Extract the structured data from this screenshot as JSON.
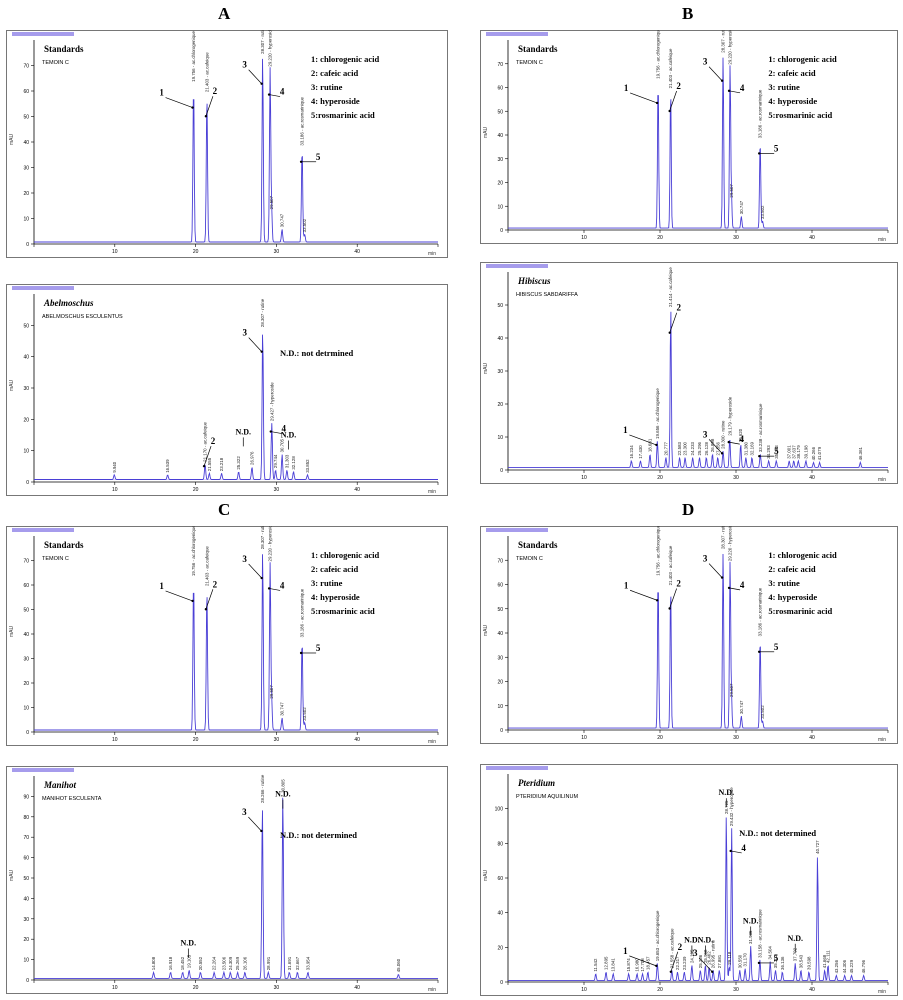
{
  "figure": {
    "section_labels": [
      "A",
      "B",
      "C",
      "D"
    ],
    "standards_legend": [
      "1: chlorogenic acid",
      "2: cafeic acid",
      "3: rutine",
      "4: hyperoside",
      "5:rosmarinic acid"
    ],
    "nd_note": "N.D.: not detrmined",
    "nd_note_2": "N.D.: not determined"
  },
  "chart_data": [
    {
      "id": "A-standards",
      "type": "line",
      "title": "Standards",
      "subtitle": "TEMOIN C",
      "ylabel": "mAU",
      "xlabel": "min",
      "xlim": [
        0,
        50
      ],
      "ylim": [
        0,
        80
      ],
      "y_ticks": [
        0,
        10,
        20,
        30,
        40,
        50,
        60,
        70
      ],
      "x_ticks": [
        0,
        10,
        20,
        30,
        40,
        50
      ],
      "peaks": [
        {
          "rt": 19.75,
          "h": 62,
          "label": "19.756 - ac.chlorogenique"
        },
        {
          "rt": 21.4,
          "h": 58,
          "label": "21.403 - ac.cafeique"
        },
        {
          "rt": 28.3,
          "h": 73,
          "label": "28.307 - rutine"
        },
        {
          "rt": 29.22,
          "h": 68,
          "label": "29.220 - hyperoside"
        },
        {
          "rt": 29.4,
          "h": 12,
          "label": "29.507"
        },
        {
          "rt": 30.7,
          "h": 5,
          "label": "30.747"
        },
        {
          "rt": 33.18,
          "h": 37,
          "label": "33.186 - ac.rosmarinique"
        },
        {
          "rt": 33.5,
          "h": 3,
          "label": "33.502"
        }
      ],
      "callouts": [
        {
          "n": "1",
          "rt": 19.75
        },
        {
          "n": "2",
          "rt": 21.4
        },
        {
          "n": "3",
          "rt": 28.3
        },
        {
          "n": "4",
          "rt": 29.22
        },
        {
          "n": "5",
          "rt": 33.18
        }
      ]
    },
    {
      "id": "A-abelmoschus",
      "type": "line",
      "title": "Abelmoschus",
      "subtitle": "ABELMOSCHUS ESCULENTUS",
      "ylabel": "mAU",
      "xlabel": "min",
      "xlim": [
        0,
        50
      ],
      "ylim": [
        0,
        60
      ],
      "y_ticks": [
        0,
        10,
        20,
        30,
        40,
        50
      ],
      "x_ticks": [
        0,
        10,
        20,
        30,
        40,
        50
      ],
      "peaks": [
        {
          "rt": 9.94,
          "h": 1.5,
          "label": "9.940"
        },
        {
          "rt": 16.539,
          "h": 1.5,
          "label": "16.539"
        },
        {
          "rt": 21.17,
          "h": 5,
          "label": "21.170 - ac.cafeique"
        },
        {
          "rt": 21.7,
          "h": 2,
          "label": "21.555"
        },
        {
          "rt": 23.218,
          "h": 2,
          "label": "23.218"
        },
        {
          "rt": 25.322,
          "h": 2.5,
          "label": "25.322"
        },
        {
          "rt": 26.976,
          "h": 4,
          "label": "26.976"
        },
        {
          "rt": 28.307,
          "h": 48,
          "label": "28.307 - rutine"
        },
        {
          "rt": 29.427,
          "h": 18,
          "label": "29.427 - hyperoside"
        },
        {
          "rt": 29.9,
          "h": 3,
          "label": "29.744"
        },
        {
          "rt": 30.705,
          "h": 8,
          "label": "30.705"
        },
        {
          "rt": 31.3,
          "h": 3,
          "label": "31.303"
        },
        {
          "rt": 32.12,
          "h": 2.5,
          "label": "32.128"
        },
        {
          "rt": 33.852,
          "h": 1.5,
          "label": "33.852"
        }
      ],
      "callouts": [
        {
          "n": "2",
          "rt": 21.17
        },
        {
          "n": "3",
          "rt": 28.307
        },
        {
          "n": "4",
          "rt": 29.427
        }
      ],
      "nd_marks": [
        25.9,
        31.5
      ]
    },
    {
      "id": "B-standards",
      "type": "line",
      "title": "Standards",
      "subtitle": "TEMOIN C",
      "ylabel": "mAU",
      "xlabel": "min",
      "xlim": [
        0,
        50
      ],
      "ylim": [
        0,
        80
      ],
      "y_ticks": [
        0,
        10,
        20,
        30,
        40,
        50,
        60,
        70
      ],
      "x_ticks": [
        0,
        10,
        20,
        30,
        40,
        50
      ],
      "peaks": [
        {
          "rt": 19.75,
          "h": 62,
          "label": "19.756 - ac.chlorogenique"
        },
        {
          "rt": 21.4,
          "h": 58,
          "label": "21.403 - ac.cafeique"
        },
        {
          "rt": 28.3,
          "h": 73,
          "label": "28.307 - rutine"
        },
        {
          "rt": 29.22,
          "h": 68,
          "label": "29.220 - hyperoside"
        },
        {
          "rt": 29.4,
          "h": 12,
          "label": "29.507"
        },
        {
          "rt": 30.7,
          "h": 5,
          "label": "30.747"
        },
        {
          "rt": 33.18,
          "h": 37,
          "label": "33.186 - ac.rosmarinique"
        },
        {
          "rt": 33.5,
          "h": 3,
          "label": "33.502"
        }
      ],
      "callouts": [
        {
          "n": "1",
          "rt": 19.75
        },
        {
          "n": "2",
          "rt": 21.4
        },
        {
          "n": "3",
          "rt": 28.3
        },
        {
          "n": "4",
          "rt": 29.22
        },
        {
          "n": "5",
          "rt": 33.18
        }
      ]
    },
    {
      "id": "B-hibiscus",
      "type": "line",
      "title": "Hibiscus",
      "subtitle": "HIBISCUS SABDARIFFA",
      "ylabel": "mAU",
      "xlabel": "min",
      "xlim": [
        0,
        50
      ],
      "ylim": [
        0,
        60
      ],
      "y_ticks": [
        0,
        10,
        20,
        30,
        40,
        50
      ],
      "x_ticks": [
        0,
        10,
        20,
        30,
        40,
        50
      ],
      "peaks": [
        {
          "rt": 16.234,
          "h": 2,
          "label": "16.234"
        },
        {
          "rt": 17.43,
          "h": 2,
          "label": "17.430"
        },
        {
          "rt": 18.681,
          "h": 4,
          "label": "18.681"
        },
        {
          "rt": 19.656,
          "h": 8,
          "label": "19.656 - ac.chlorogenique"
        },
        {
          "rt": 20.777,
          "h": 3,
          "label": "20.777"
        },
        {
          "rt": 21.414,
          "h": 48,
          "label": "21.414 - ac.cafeique"
        },
        {
          "rt": 22.58,
          "h": 3,
          "label": "22.583"
        },
        {
          "rt": 23.3,
          "h": 3,
          "label": "23.300"
        },
        {
          "rt": 24.3,
          "h": 3,
          "label": "24.233"
        },
        {
          "rt": 25.2,
          "h": 3,
          "label": "25.296"
        },
        {
          "rt": 26.1,
          "h": 3,
          "label": "26.128"
        },
        {
          "rt": 26.9,
          "h": 4,
          "label": "26.898"
        },
        {
          "rt": 27.6,
          "h": 3,
          "label": "27.556"
        },
        {
          "rt": 28.3,
          "h": 5,
          "label": "28.300 - rutine"
        },
        {
          "rt": 29.179,
          "h": 9,
          "label": "29.179 - hyperoside"
        },
        {
          "rt": 30.62,
          "h": 7,
          "label": "30.620"
        },
        {
          "rt": 31.3,
          "h": 3,
          "label": "31.380"
        },
        {
          "rt": 32.1,
          "h": 3,
          "label": "32.169"
        },
        {
          "rt": 33.2,
          "h": 4,
          "label": "33.238 - ac.rosmarinique"
        },
        {
          "rt": 34.3,
          "h": 2,
          "label": "34.293"
        },
        {
          "rt": 35.3,
          "h": 2,
          "label": "35.263"
        },
        {
          "rt": 37.0,
          "h": 2,
          "label": "37.001"
        },
        {
          "rt": 37.6,
          "h": 2,
          "label": "37.637"
        },
        {
          "rt": 38.2,
          "h": 2,
          "label": "38.179"
        },
        {
          "rt": 39.2,
          "h": 2,
          "label": "39.198"
        },
        {
          "rt": 40.2,
          "h": 1.5,
          "label": "40.266"
        },
        {
          "rt": 41.0,
          "h": 1.5,
          "label": "41.079"
        },
        {
          "rt": 46.361,
          "h": 1.5,
          "label": "46.361"
        }
      ],
      "callouts": [
        {
          "n": "1",
          "rt": 19.656
        },
        {
          "n": "2",
          "rt": 21.414
        },
        {
          "n": "3",
          "rt": 28.3
        },
        {
          "n": "4",
          "rt": 29.179
        },
        {
          "n": "5",
          "rt": 33.2
        }
      ]
    },
    {
      "id": "C-standards",
      "type": "line",
      "title": "Standards",
      "subtitle": "TEMOIN C",
      "ylabel": "mAU",
      "xlabel": "min",
      "xlim": [
        0,
        50
      ],
      "ylim": [
        0,
        80
      ],
      "y_ticks": [
        0,
        10,
        20,
        30,
        40,
        50,
        60,
        70
      ],
      "x_ticks": [
        0,
        10,
        20,
        30,
        40,
        50
      ],
      "peaks": [
        {
          "rt": 19.75,
          "h": 62,
          "label": "19.756 - ac.chlorogenique"
        },
        {
          "rt": 21.4,
          "h": 58,
          "label": "21.403 - ac.cafeique"
        },
        {
          "rt": 28.3,
          "h": 73,
          "label": "28.307 - rutine"
        },
        {
          "rt": 29.22,
          "h": 68,
          "label": "29.220 - hyperoside"
        },
        {
          "rt": 29.4,
          "h": 12,
          "label": "29.507"
        },
        {
          "rt": 30.7,
          "h": 5,
          "label": "30.747"
        },
        {
          "rt": 33.18,
          "h": 37,
          "label": "33.186 - ac.rosmarinique"
        },
        {
          "rt": 33.5,
          "h": 3,
          "label": "33.502"
        }
      ],
      "callouts": [
        {
          "n": "1",
          "rt": 19.75
        },
        {
          "n": "2",
          "rt": 21.4
        },
        {
          "n": "3",
          "rt": 28.3
        },
        {
          "n": "4",
          "rt": 29.22
        },
        {
          "n": "5",
          "rt": 33.18
        }
      ]
    },
    {
      "id": "C-manihot",
      "type": "line",
      "title": "Manihot",
      "subtitle": "MANIHOT ESCULENTA",
      "ylabel": "mAU",
      "xlabel": "min",
      "xlim": [
        0,
        50
      ],
      "ylim": [
        0,
        100
      ],
      "y_ticks": [
        0,
        10,
        20,
        30,
        40,
        50,
        60,
        70,
        80,
        90
      ],
      "x_ticks": [
        0,
        10,
        20,
        30,
        40,
        50
      ],
      "peaks": [
        {
          "rt": 14.8,
          "h": 3,
          "label": "14.808"
        },
        {
          "rt": 16.9,
          "h": 3,
          "label": "16.918"
        },
        {
          "rt": 18.4,
          "h": 3,
          "label": "18.452"
        },
        {
          "rt": 19.2,
          "h": 4,
          "label": "19.105"
        },
        {
          "rt": 20.6,
          "h": 3,
          "label": "20.552"
        },
        {
          "rt": 22.3,
          "h": 3,
          "label": "22.264"
        },
        {
          "rt": 23.5,
          "h": 3,
          "label": "23.506"
        },
        {
          "rt": 24.3,
          "h": 3,
          "label": "24.309"
        },
        {
          "rt": 25.2,
          "h": 3,
          "label": "25.269"
        },
        {
          "rt": 26.1,
          "h": 3,
          "label": "26.106"
        },
        {
          "rt": 28.266,
          "h": 85,
          "label": "28.266 - rutine"
        },
        {
          "rt": 29.0,
          "h": 3,
          "label": "28.991"
        },
        {
          "rt": 30.8,
          "h": 90,
          "label": "30.805"
        },
        {
          "rt": 31.6,
          "h": 3,
          "label": "31.691"
        },
        {
          "rt": 32.6,
          "h": 3,
          "label": "32.667"
        },
        {
          "rt": 33.9,
          "h": 3,
          "label": "33.954"
        },
        {
          "rt": 45.1,
          "h": 2,
          "label": "45.060"
        }
      ],
      "callouts": [
        {
          "n": "3",
          "rt": 28.266
        }
      ],
      "nd_marks": [
        19.1,
        30.8
      ]
    },
    {
      "id": "D-standards",
      "type": "line",
      "title": "Standards",
      "subtitle": "TEMOIN C",
      "ylabel": "mAU",
      "xlabel": "min",
      "xlim": [
        0,
        50
      ],
      "ylim": [
        0,
        80
      ],
      "y_ticks": [
        0,
        10,
        20,
        30,
        40,
        50,
        60,
        70
      ],
      "x_ticks": [
        0,
        10,
        20,
        30,
        40,
        50
      ],
      "peaks": [
        {
          "rt": 19.75,
          "h": 62,
          "label": "19.756 - ac.chlorogenique"
        },
        {
          "rt": 21.4,
          "h": 58,
          "label": "21.403 - ac.cafeique"
        },
        {
          "rt": 28.3,
          "h": 73,
          "label": "28.307 - rutine"
        },
        {
          "rt": 29.22,
          "h": 68,
          "label": "29.220 - hyperoside"
        },
        {
          "rt": 29.4,
          "h": 12,
          "label": "29.507"
        },
        {
          "rt": 30.7,
          "h": 5,
          "label": "30.747"
        },
        {
          "rt": 33.18,
          "h": 37,
          "label": "33.186 - ac.rosmarinique"
        },
        {
          "rt": 33.5,
          "h": 3,
          "label": "33.502"
        }
      ],
      "callouts": [
        {
          "n": "1",
          "rt": 19.75
        },
        {
          "n": "2",
          "rt": 21.4
        },
        {
          "n": "3",
          "rt": 28.3
        },
        {
          "n": "4",
          "rt": 29.22
        },
        {
          "n": "5",
          "rt": 33.18
        }
      ]
    },
    {
      "id": "D-pteridium",
      "type": "line",
      "title": "Pteridium",
      "subtitle": "PTERIDIUM AQUILINUM",
      "ylabel": "mAU",
      "xlabel": "min",
      "xlim": [
        0,
        50
      ],
      "ylim": [
        0,
        120
      ],
      "y_ticks": [
        0,
        20,
        40,
        60,
        80,
        100
      ],
      "x_ticks": [
        0,
        10,
        20,
        30,
        40,
        50
      ],
      "peaks": [
        {
          "rt": 11.542,
          "h": 4,
          "label": "11.542"
        },
        {
          "rt": 12.895,
          "h": 5,
          "label": "12.895"
        },
        {
          "rt": 13.841,
          "h": 4,
          "label": "13.841"
        },
        {
          "rt": 15.874,
          "h": 4,
          "label": "15.874"
        },
        {
          "rt": 16.98,
          "h": 4,
          "label": "16.980"
        },
        {
          "rt": 17.7,
          "h": 4,
          "label": "17.708"
        },
        {
          "rt": 18.4,
          "h": 5,
          "label": "18.457"
        },
        {
          "rt": 19.653,
          "h": 10,
          "label": "19.653 - ac.chlorogenique"
        },
        {
          "rt": 21.558,
          "h": 6,
          "label": "21.558 - ac.cafeique"
        },
        {
          "rt": 22.3,
          "h": 5,
          "label": "22.317"
        },
        {
          "rt": 23.2,
          "h": 5,
          "label": "23.239"
        },
        {
          "rt": 24.195,
          "h": 9,
          "label": "24.195"
        },
        {
          "rt": 25.306,
          "h": 6,
          "label": "25.306"
        },
        {
          "rt": 25.968,
          "h": 9,
          "label": "25.968"
        },
        {
          "rt": 26.462,
          "h": 8,
          "label": "26.462"
        },
        {
          "rt": 27.0,
          "h": 6,
          "label": "26.995 - rutine"
        },
        {
          "rt": 27.8,
          "h": 6,
          "label": "27.881"
        },
        {
          "rt": 28.725,
          "h": 95,
          "label": "28.725"
        },
        {
          "rt": 29.118,
          "h": 8,
          "label": "29.118"
        },
        {
          "rt": 29.432,
          "h": 88,
          "label": "29.432 - hyperoside"
        },
        {
          "rt": 30.5,
          "h": 6,
          "label": "30.550"
        },
        {
          "rt": 31.2,
          "h": 7,
          "label": "31.170"
        },
        {
          "rt": 31.935,
          "h": 20,
          "label": "31.935"
        },
        {
          "rt": 33.15,
          "h": 12,
          "label": "33.158 - ac.rosmarinique"
        },
        {
          "rt": 34.5,
          "h": 11,
          "label": "34.504"
        },
        {
          "rt": 35.2,
          "h": 6,
          "label": "35.202"
        },
        {
          "rt": 36.1,
          "h": 5,
          "label": "36.136"
        },
        {
          "rt": 37.792,
          "h": 10,
          "label": "37.792"
        },
        {
          "rt": 38.543,
          "h": 6,
          "label": "38.543"
        },
        {
          "rt": 39.598,
          "h": 5,
          "label": "39.598"
        },
        {
          "rt": 40.727,
          "h": 72,
          "label": "40.727"
        },
        {
          "rt": 41.668,
          "h": 6,
          "label": "41.668"
        },
        {
          "rt": 42.111,
          "h": 9,
          "label": "42.111"
        },
        {
          "rt": 43.2,
          "h": 3,
          "label": "43.256"
        },
        {
          "rt": 44.3,
          "h": 3,
          "label": "44.306"
        },
        {
          "rt": 45.2,
          "h": 3,
          "label": "45.229"
        },
        {
          "rt": 46.796,
          "h": 3,
          "label": "46.796"
        }
      ],
      "callouts": [
        {
          "n": "1",
          "rt": 19.653
        },
        {
          "n": "2",
          "rt": 21.558
        },
        {
          "n": "3",
          "rt": 27.0
        },
        {
          "n": "4",
          "rt": 29.432
        },
        {
          "n": "5",
          "rt": 33.15
        }
      ],
      "nd_marks": [
        24.195,
        25.968,
        28.725,
        31.935,
        37.792
      ]
    }
  ]
}
